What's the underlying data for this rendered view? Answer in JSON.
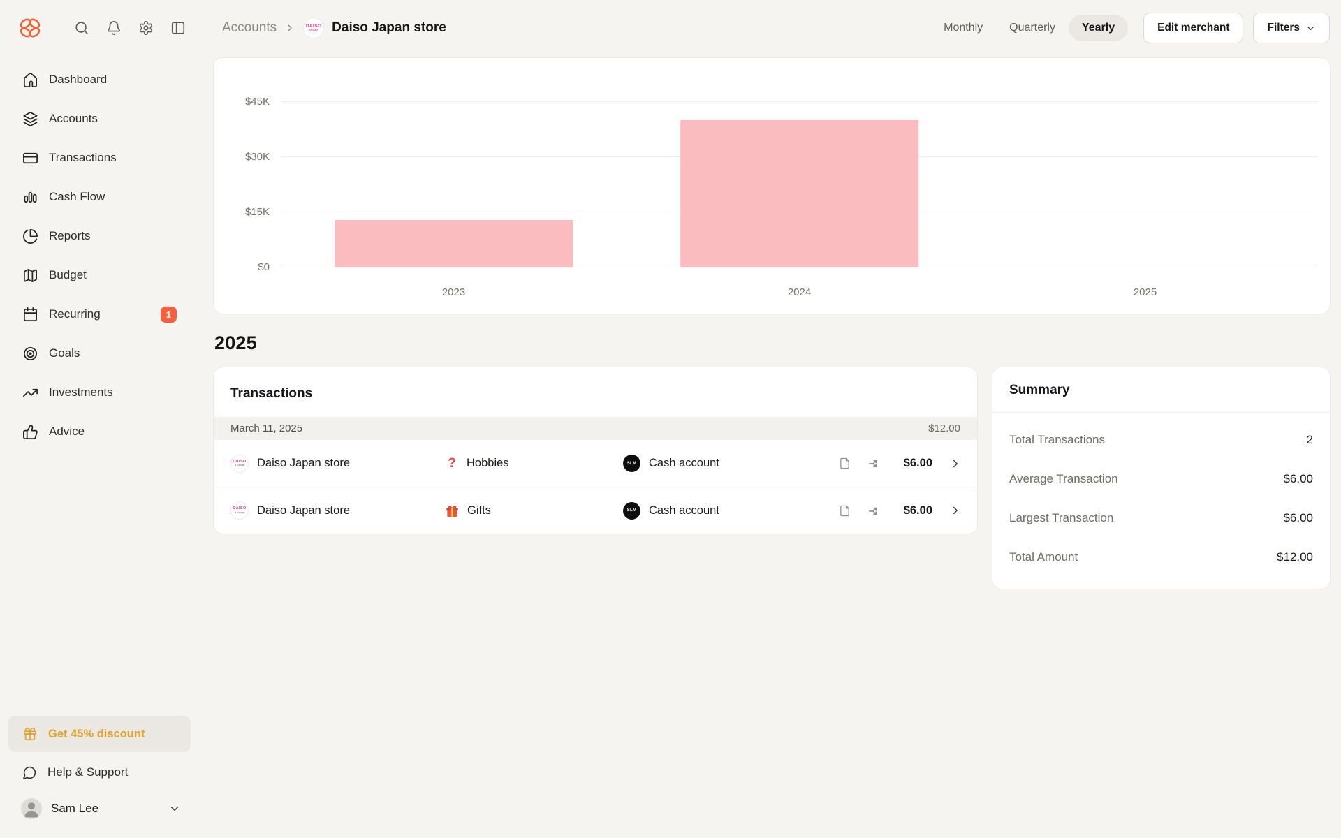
{
  "header": {
    "breadcrumb": {
      "parent": "Accounts",
      "current": "Daiso Japan store"
    },
    "periods": [
      {
        "label": "Monthly",
        "active": false
      },
      {
        "label": "Quarterly",
        "active": false
      },
      {
        "label": "Yearly",
        "active": true
      }
    ],
    "edit_button": "Edit merchant",
    "filters_button": "Filters"
  },
  "sidebar": {
    "items": [
      {
        "label": "Dashboard",
        "icon": "home-icon"
      },
      {
        "label": "Accounts",
        "icon": "layers-icon"
      },
      {
        "label": "Transactions",
        "icon": "credit-card-icon"
      },
      {
        "label": "Cash Flow",
        "icon": "bar-chart-icon"
      },
      {
        "label": "Reports",
        "icon": "pie-chart-icon"
      },
      {
        "label": "Budget",
        "icon": "map-icon"
      },
      {
        "label": "Recurring",
        "icon": "calendar-icon",
        "badge": "1"
      },
      {
        "label": "Goals",
        "icon": "target-icon"
      },
      {
        "label": "Investments",
        "icon": "trending-up-icon"
      },
      {
        "label": "Advice",
        "icon": "thumbs-up-icon"
      }
    ],
    "discount_label": "Get 45% discount",
    "help_label": "Help & Support",
    "user_name": "Sam Lee"
  },
  "main": {
    "year_heading": "2025",
    "transactions": {
      "title": "Transactions",
      "date_group": {
        "date": "March 11, 2025",
        "total": "$12.00"
      },
      "rows": [
        {
          "merchant": "Daiso Japan store",
          "merchant_logo": "DAISO",
          "category": "Hobbies",
          "category_icon": "question-mark-icon",
          "account": "Cash account",
          "account_logo": "SLM",
          "amount": "$6.00"
        },
        {
          "merchant": "Daiso Japan store",
          "merchant_logo": "DAISO",
          "category": "Gifts",
          "category_icon": "gift-emoji-icon",
          "account": "Cash account",
          "account_logo": "SLM",
          "amount": "$6.00"
        }
      ]
    },
    "summary": {
      "title": "Summary",
      "rows": [
        {
          "label": "Total Transactions",
          "value": "2"
        },
        {
          "label": "Average Transaction",
          "value": "$6.00"
        },
        {
          "label": "Largest Transaction",
          "value": "$6.00"
        },
        {
          "label": "Total Amount",
          "value": "$12.00"
        }
      ]
    }
  },
  "chart_data": {
    "type": "bar",
    "categories": [
      "2023",
      "2024",
      "2025"
    ],
    "values": [
      13000,
      40000,
      12
    ],
    "title": "",
    "xlabel": "",
    "ylabel": "",
    "ylim": [
      0,
      45000
    ],
    "yticks": [
      {
        "value": 0,
        "label": "$0"
      },
      {
        "value": 15000,
        "label": "$15K"
      },
      {
        "value": 30000,
        "label": "$30K"
      },
      {
        "value": 45000,
        "label": "$45K"
      }
    ],
    "bar_color": "#FBBCBF",
    "grid": true,
    "legend": "none"
  },
  "merchant_logo_text": {
    "line1": "DAISO",
    "line2": "JAPAN"
  },
  "account_logo_text": "SLM",
  "colors": {
    "background": "#F6F4F0",
    "card": "#FFFFFF",
    "accent_orange": "#EC6237",
    "badge_orange": "#F4613C",
    "discount_amber": "#DFA22E",
    "bar_pink": "#FBBCBF",
    "daiso_pink": "#E8318A",
    "danger_red": "#E5484D"
  }
}
